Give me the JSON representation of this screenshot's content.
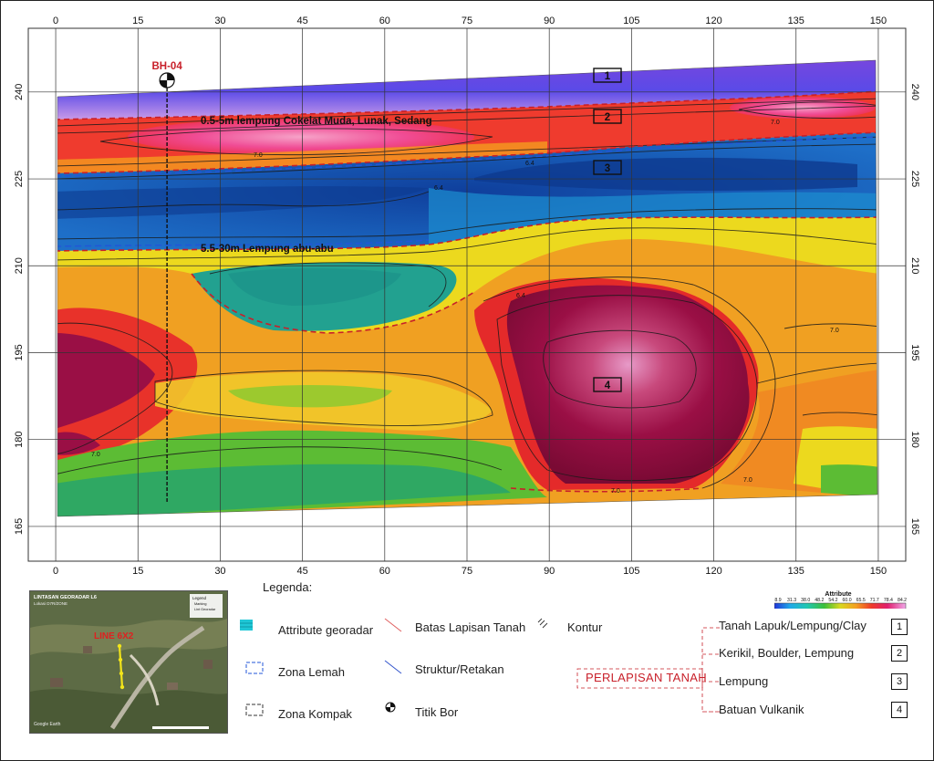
{
  "chart_data": {
    "type": "heatmap",
    "x_ticks": [
      "0",
      "15",
      "30",
      "45",
      "60",
      "75",
      "90",
      "105",
      "120",
      "135",
      "150"
    ],
    "y_ticks": [
      "240",
      "225",
      "210",
      "195",
      "180",
      "165"
    ],
    "xlim": [
      -5,
      155
    ],
    "ylim": [
      159,
      251
    ],
    "colorbar": {
      "title": "Attribute",
      "ticks": [
        "8.9",
        "31.3",
        "38.0",
        "48.2",
        "54.2",
        "60.0",
        "65.5",
        "71.7",
        "78.4",
        "84.2"
      ]
    },
    "contour_labels": [
      "7.0",
      "7.0",
      "6.4",
      "6.4",
      "7.0",
      "7.0",
      "7.0",
      "7.0",
      "6.4"
    ],
    "borehole": {
      "label": "BH-04",
      "x": 20.3
    },
    "annotations": [
      {
        "text": "0.5-5m lempung Cokelat Muda, Lunak, Sedang"
      },
      {
        "text": "5.5-30m Lempung abu-abu"
      }
    ],
    "layer_labels": [
      "1",
      "2",
      "3",
      "4"
    ]
  },
  "legend": {
    "title": "Legenda:",
    "items": [
      "Attribute georadar",
      "Zona Lemah",
      "Zona Kompak",
      "Batas Lapisan Tanah",
      "Struktur/Retakan",
      "Titik Bor",
      "Kontur"
    ],
    "perlapisan_title": "PERLAPISAN TANAH",
    "layers": [
      {
        "name": "Tanah Lapuk/Lempung/Clay",
        "num": "1"
      },
      {
        "name": "Kerikil, Boulder, Lempung",
        "num": "2"
      },
      {
        "name": "Lempung",
        "num": "3"
      },
      {
        "name": "Batuan Vulkanik",
        "num": "4"
      }
    ]
  },
  "minimap": {
    "title": "LINTASAN GEORADAR L6",
    "subtitle": "Lokasi D7R/ZONE",
    "legend_title": "Legend",
    "legend_items": [
      "Marking",
      "Lint Georadar"
    ],
    "line_label": "LINE 6X2",
    "credit": "Google Earth"
  },
  "colors": {
    "deep_red": "#8b0a3a",
    "red": "#ee2a2a",
    "orange": "#f39a1e",
    "yellow": "#eed21d",
    "green": "#55b82e",
    "teal": "#25a49a",
    "blue": "#1660c0",
    "purple": "#7b46dc",
    "pink": "#f04c95"
  }
}
